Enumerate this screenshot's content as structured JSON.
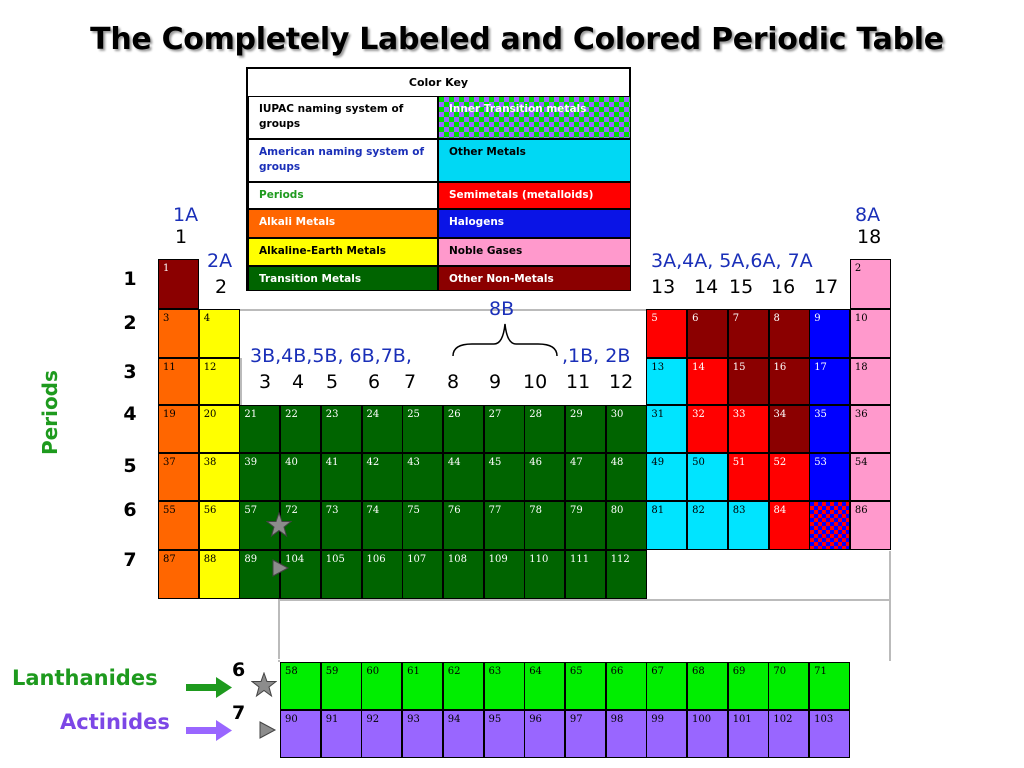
{
  "title": "The Completely Labeled and Colored Periodic Table",
  "color_key": {
    "title": "Color Key",
    "entries": [
      {
        "label": "IUPAC naming system of groups",
        "color": "#ffffff",
        "text_color": "#000000"
      },
      {
        "label": "Inner Transition metals",
        "color": "checker",
        "text_color": "#ffffff"
      },
      {
        "label": "American naming system of groups",
        "color": "#ffffff",
        "text_color": "#1a2fb8"
      },
      {
        "label": "Other Metals",
        "color": "#00d8f4",
        "text_color": "#000000"
      },
      {
        "label": "Periods",
        "color": "#ffffff",
        "text_color": "#1e9a1e"
      },
      {
        "label": "Semimetals (metalloids)",
        "color": "#ff0000",
        "text_color": "#ffffff"
      },
      {
        "label": "Alkali Metals",
        "color": "#ff6600",
        "text_color": "#ffffff"
      },
      {
        "label": "Halogens",
        "color": "#0a14e6",
        "text_color": "#ffffff"
      },
      {
        "label": "Alkaline-Earth Metals",
        "color": "#ffff00",
        "text_color": "#000000"
      },
      {
        "label": "Noble Gases",
        "color": "#ff99cc",
        "text_color": "#000000"
      },
      {
        "label": "Transition Metals",
        "color": "#006400",
        "text_color": "#ffffff"
      },
      {
        "label": "Other Non-Metals",
        "color": "#8b0000",
        "text_color": "#ffffff"
      }
    ]
  },
  "colors": {
    "alkali": "#ff6600",
    "alkaline": "#ffff00",
    "transition": "#006400",
    "other_metal": "#00e4ff",
    "semimetal": "#ff0000",
    "halogen": "#0000ff",
    "noble": "#ff99cc",
    "nonmetal": "#8b0000",
    "lanthanide": "#00ee00",
    "actinide": "#9966ff",
    "lanthanide_label": "#1e9a1e",
    "actinide_label": "#7c47e6"
  },
  "group_labels": {
    "g1_american": "1A",
    "g1_iupac": "1",
    "g2_american": "2A",
    "g2_iupac": "2",
    "transition_american_left": "3B,4B,5B, 6B,7B,",
    "transition_american_right": ",1B, 2B",
    "transition_iupac": [
      "3",
      "4",
      "5",
      "6",
      "7",
      "8",
      "9",
      "10",
      "11",
      "12"
    ],
    "group8b": "8B",
    "p_american": "3A,4A, 5A,6A, 7A",
    "p_iupac": [
      "13",
      "14",
      "15",
      "16",
      "17"
    ],
    "g18_american": "8A",
    "g18_iupac": "18"
  },
  "periods": [
    "1",
    "2",
    "3",
    "4",
    "5",
    "6",
    "7"
  ],
  "periods_label": "Periods",
  "rows": [
    {
      "period": 1,
      "cells": [
        {
          "col": 1,
          "num": "1",
          "type": "nonmetal"
        },
        {
          "col": 18,
          "num": "2",
          "type": "noble"
        }
      ]
    },
    {
      "period": 2,
      "cells": [
        {
          "col": 1,
          "num": "3",
          "type": "alkali"
        },
        {
          "col": 2,
          "num": "4",
          "type": "alkaline"
        },
        {
          "col": 13,
          "num": "5",
          "type": "semimetal"
        },
        {
          "col": 14,
          "num": "6",
          "type": "nonmetal"
        },
        {
          "col": 15,
          "num": "7",
          "type": "nonmetal"
        },
        {
          "col": 16,
          "num": "8",
          "type": "nonmetal"
        },
        {
          "col": 17,
          "num": "9",
          "type": "halogen"
        },
        {
          "col": 18,
          "num": "10",
          "type": "noble"
        }
      ]
    },
    {
      "period": 3,
      "cells": [
        {
          "col": 1,
          "num": "11",
          "type": "alkali"
        },
        {
          "col": 2,
          "num": "12",
          "type": "alkaline"
        },
        {
          "col": 13,
          "num": "13",
          "type": "other_metal"
        },
        {
          "col": 14,
          "num": "14",
          "type": "semimetal"
        },
        {
          "col": 15,
          "num": "15",
          "type": "nonmetal"
        },
        {
          "col": 16,
          "num": "16",
          "type": "nonmetal"
        },
        {
          "col": 17,
          "num": "17",
          "type": "halogen"
        },
        {
          "col": 18,
          "num": "18",
          "type": "noble"
        }
      ]
    },
    {
      "period": 4,
      "cells": [
        {
          "col": 1,
          "num": "19",
          "type": "alkali"
        },
        {
          "col": 2,
          "num": "20",
          "type": "alkaline"
        },
        {
          "col": 3,
          "num": "21",
          "type": "transition"
        },
        {
          "col": 4,
          "num": "22",
          "type": "transition"
        },
        {
          "col": 5,
          "num": "23",
          "type": "transition"
        },
        {
          "col": 6,
          "num": "24",
          "type": "transition"
        },
        {
          "col": 7,
          "num": "25",
          "type": "transition"
        },
        {
          "col": 8,
          "num": "26",
          "type": "transition"
        },
        {
          "col": 9,
          "num": "27",
          "type": "transition"
        },
        {
          "col": 10,
          "num": "28",
          "type": "transition"
        },
        {
          "col": 11,
          "num": "29",
          "type": "transition"
        },
        {
          "col": 12,
          "num": "30",
          "type": "transition"
        },
        {
          "col": 13,
          "num": "31",
          "type": "other_metal"
        },
        {
          "col": 14,
          "num": "32",
          "type": "semimetal"
        },
        {
          "col": 15,
          "num": "33",
          "type": "semimetal"
        },
        {
          "col": 16,
          "num": "34",
          "type": "nonmetal"
        },
        {
          "col": 17,
          "num": "35",
          "type": "halogen"
        },
        {
          "col": 18,
          "num": "36",
          "type": "noble"
        }
      ]
    },
    {
      "period": 5,
      "cells": [
        {
          "col": 1,
          "num": "37",
          "type": "alkali"
        },
        {
          "col": 2,
          "num": "38",
          "type": "alkaline"
        },
        {
          "col": 3,
          "num": "39",
          "type": "transition"
        },
        {
          "col": 4,
          "num": "40",
          "type": "transition"
        },
        {
          "col": 5,
          "num": "41",
          "type": "transition"
        },
        {
          "col": 6,
          "num": "42",
          "type": "transition"
        },
        {
          "col": 7,
          "num": "43",
          "type": "transition"
        },
        {
          "col": 8,
          "num": "44",
          "type": "transition"
        },
        {
          "col": 9,
          "num": "45",
          "type": "transition"
        },
        {
          "col": 10,
          "num": "46",
          "type": "transition"
        },
        {
          "col": 11,
          "num": "47",
          "type": "transition"
        },
        {
          "col": 12,
          "num": "48",
          "type": "transition"
        },
        {
          "col": 13,
          "num": "49",
          "type": "other_metal"
        },
        {
          "col": 14,
          "num": "50",
          "type": "other_metal"
        },
        {
          "col": 15,
          "num": "51",
          "type": "semimetal"
        },
        {
          "col": 16,
          "num": "52",
          "type": "semimetal"
        },
        {
          "col": 17,
          "num": "53",
          "type": "halogen"
        },
        {
          "col": 18,
          "num": "54",
          "type": "noble"
        }
      ]
    },
    {
      "period": 6,
      "cells": [
        {
          "col": 1,
          "num": "55",
          "type": "alkali"
        },
        {
          "col": 2,
          "num": "56",
          "type": "alkaline"
        },
        {
          "col": 3,
          "num": "57",
          "type": "transition"
        },
        {
          "col": 4,
          "num": "72",
          "type": "transition"
        },
        {
          "col": 5,
          "num": "73",
          "type": "transition"
        },
        {
          "col": 6,
          "num": "74",
          "type": "transition"
        },
        {
          "col": 7,
          "num": "75",
          "type": "transition"
        },
        {
          "col": 8,
          "num": "76",
          "type": "transition"
        },
        {
          "col": 9,
          "num": "77",
          "type": "transition"
        },
        {
          "col": 10,
          "num": "78",
          "type": "transition"
        },
        {
          "col": 11,
          "num": "79",
          "type": "transition"
        },
        {
          "col": 12,
          "num": "80",
          "type": "transition"
        },
        {
          "col": 13,
          "num": "81",
          "type": "other_metal"
        },
        {
          "col": 14,
          "num": "82",
          "type": "other_metal"
        },
        {
          "col": 15,
          "num": "83",
          "type": "other_metal"
        },
        {
          "col": 16,
          "num": "84",
          "type": "semimetal"
        },
        {
          "col": 17,
          "num": "",
          "type": "halogen_check"
        },
        {
          "col": 18,
          "num": "86",
          "type": "noble"
        }
      ]
    },
    {
      "period": 7,
      "cells": [
        {
          "col": 1,
          "num": "87",
          "type": "alkali"
        },
        {
          "col": 2,
          "num": "88",
          "type": "alkaline"
        },
        {
          "col": 3,
          "num": "89",
          "type": "transition"
        },
        {
          "col": 4,
          "num": "104",
          "type": "transition"
        },
        {
          "col": 5,
          "num": "105",
          "type": "transition"
        },
        {
          "col": 6,
          "num": "106",
          "type": "transition"
        },
        {
          "col": 7,
          "num": "107",
          "type": "transition"
        },
        {
          "col": 8,
          "num": "108",
          "type": "transition"
        },
        {
          "col": 9,
          "num": "109",
          "type": "transition"
        },
        {
          "col": 10,
          "num": "110",
          "type": "transition"
        },
        {
          "col": 11,
          "num": "111",
          "type": "transition"
        },
        {
          "col": 12,
          "num": "112",
          "type": "transition"
        }
      ]
    }
  ],
  "lanthanides": {
    "label": "Lanthanides",
    "period": "6",
    "numbers": [
      "58",
      "59",
      "60",
      "61",
      "62",
      "63",
      "64",
      "65",
      "66",
      "67",
      "68",
      "69",
      "70",
      "71"
    ],
    "marker": "star-icon"
  },
  "actinides": {
    "label": "Actinides",
    "period": "7",
    "numbers": [
      "90",
      "91",
      "92",
      "93",
      "94",
      "95",
      "96",
      "97",
      "98",
      "99",
      "100",
      "101",
      "102",
      "103"
    ],
    "marker": "triangle-icon"
  }
}
